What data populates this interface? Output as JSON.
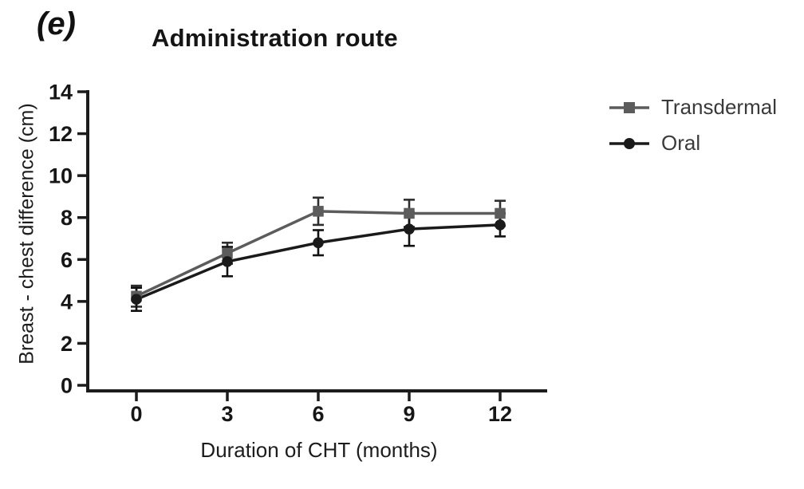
{
  "panel_label": "(e)",
  "title": "Administration route",
  "colors": {
    "axis": "#1c1c1c",
    "tick_text": "#161616",
    "legend_text": "#3a3a3a",
    "transdermal": "#5c5c5c",
    "oral": "#1a1a1a"
  },
  "chart_data": {
    "type": "line",
    "title": "Administration route",
    "xlabel": "Duration of CHT (months)",
    "ylabel": "Breast - chest difference (cm)",
    "x": [
      0,
      3,
      6,
      9,
      12
    ],
    "xticks": [
      0,
      3,
      6,
      9,
      12
    ],
    "yticks": [
      0,
      2,
      4,
      6,
      8,
      10,
      12,
      14
    ],
    "xlim": [
      0,
      12
    ],
    "ylim": [
      0,
      14
    ],
    "grid": false,
    "error_bars": true,
    "legend_position": "right",
    "series": [
      {
        "name": "Transdermal",
        "marker": "square",
        "color": "#5c5c5c",
        "error_color": "#2e2e2e",
        "values": [
          4.25,
          6.3,
          8.3,
          8.2,
          8.2
        ],
        "errors": [
          0.5,
          0.5,
          0.65,
          0.65,
          0.6
        ]
      },
      {
        "name": "Oral",
        "marker": "circle",
        "color": "#1a1a1a",
        "error_color": "#111111",
        "values": [
          4.1,
          5.9,
          6.8,
          7.45,
          7.65
        ],
        "errors": [
          0.55,
          0.7,
          0.6,
          0.8,
          0.55
        ]
      }
    ]
  }
}
